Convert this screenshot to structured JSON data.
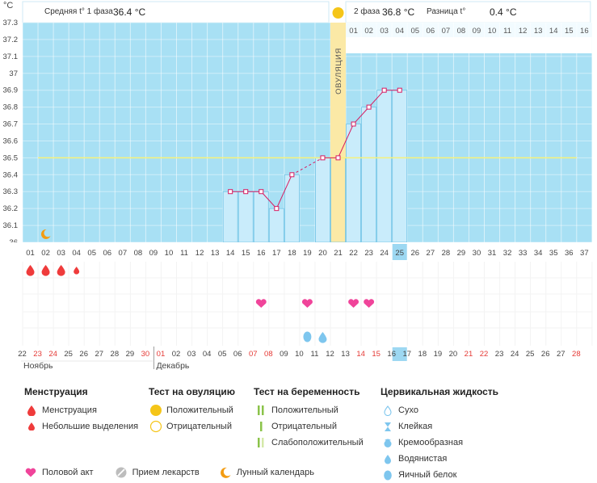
{
  "header": {
    "phase1_label": "Средняя t° 1 фаза",
    "phase1_value": "36.4 °C",
    "phase2_label": "2 фаза",
    "phase2_value": "36.8 °C",
    "diff_label": "Разница t°",
    "diff_value": "0.4 °C",
    "unit": "°C",
    "ovulation_label": "ОВУЛЯЦИЯ"
  },
  "chart_data": {
    "type": "line",
    "title": "",
    "xlabel": "",
    "ylabel": "°C",
    "ylim": [
      36.0,
      37.3
    ],
    "y_ticks": [
      "36",
      "36.1",
      "36.2",
      "36.3",
      "36.4",
      "36.5",
      "36.6",
      "36.7",
      "36.8",
      "36.9",
      "37",
      "37.1",
      "37.2",
      "37.3"
    ],
    "cycle_days": [
      "01",
      "02",
      "03",
      "04",
      "05",
      "06",
      "07",
      "08",
      "09",
      "10",
      "11",
      "12",
      "13",
      "14",
      "15",
      "16",
      "17",
      "18",
      "19",
      "20",
      "21",
      "22",
      "23",
      "24",
      "25",
      "26",
      "27",
      "28",
      "29",
      "30",
      "31",
      "32",
      "33",
      "34",
      "35",
      "36",
      "37"
    ],
    "current_cycle_day": "25",
    "temperatures": [
      null,
      null,
      null,
      null,
      null,
      null,
      null,
      null,
      null,
      null,
      null,
      null,
      null,
      36.3,
      36.3,
      36.3,
      36.2,
      36.4,
      null,
      36.5,
      36.5,
      36.7,
      36.8,
      36.9,
      36.9,
      null,
      null,
      null,
      null,
      null,
      null,
      null,
      null,
      null,
      null,
      null,
      null
    ],
    "coverline": 36.5,
    "ovulation_day": "21",
    "phase2_days": [
      "01",
      "02",
      "03",
      "04",
      "05",
      "06",
      "07",
      "08",
      "09",
      "10",
      "11",
      "12",
      "13",
      "14",
      "15",
      "16"
    ],
    "calendar_dates": [
      "22",
      "23",
      "24",
      "25",
      "26",
      "27",
      "28",
      "29",
      "30",
      "01",
      "02",
      "03",
      "04",
      "05",
      "06",
      "07",
      "08",
      "09",
      "10",
      "11",
      "12",
      "13",
      "14",
      "15",
      "16",
      "17",
      "18",
      "19",
      "20",
      "21",
      "22",
      "23",
      "24",
      "25",
      "26",
      "27",
      "28"
    ],
    "weekend_indices": [
      1,
      2,
      8,
      9,
      15,
      16,
      22,
      23,
      29,
      30,
      36
    ],
    "today_index": 24,
    "month_labels": [
      {
        "label": "Ноябрь",
        "index": 0
      },
      {
        "label": "Декабрь",
        "index": 9
      }
    ],
    "menstruation": {
      "heavy": [
        0,
        1,
        2
      ],
      "light": [
        3
      ]
    },
    "intercourse_days": [
      15,
      18,
      21,
      22
    ],
    "egg_white_days": [
      18
    ],
    "watery_days": [
      19
    ],
    "moon_day": 1,
    "colors": {
      "plot_bg": "#a8e0f4",
      "bar_fill": "#c9ecfb",
      "bar_stroke": "#6fc3e6",
      "line": "#d81b60",
      "coverline": "#f7f27a",
      "ovulation_band": "#fbe9a6",
      "weekend_text": "#e53935",
      "drop": "#ef3b3b",
      "heart": "#f0449a",
      "fluid": "#7ec6ee",
      "moon": "#f39c12",
      "sun": "#f5c518"
    }
  },
  "legend": {
    "menstruation": {
      "title": "Менструация",
      "items": [
        "Менструация",
        "Небольшие выделения"
      ]
    },
    "ovulation_test": {
      "title": "Тест на овуляцию",
      "items": [
        "Положительный",
        "Отрицательный"
      ]
    },
    "pregnancy_test": {
      "title": "Тест на беременность",
      "items": [
        "Положительный",
        "Отрицательный",
        "Слабоположительный"
      ]
    },
    "cervical_fluid": {
      "title": "Цервикальная жидкость",
      "items": [
        "Сухо",
        "Клейкая",
        "Кремообразная",
        "Водянистая",
        "Яичный белок"
      ]
    },
    "other": [
      "Половой акт",
      "Прием лекарств",
      "Лунный календарь"
    ]
  }
}
